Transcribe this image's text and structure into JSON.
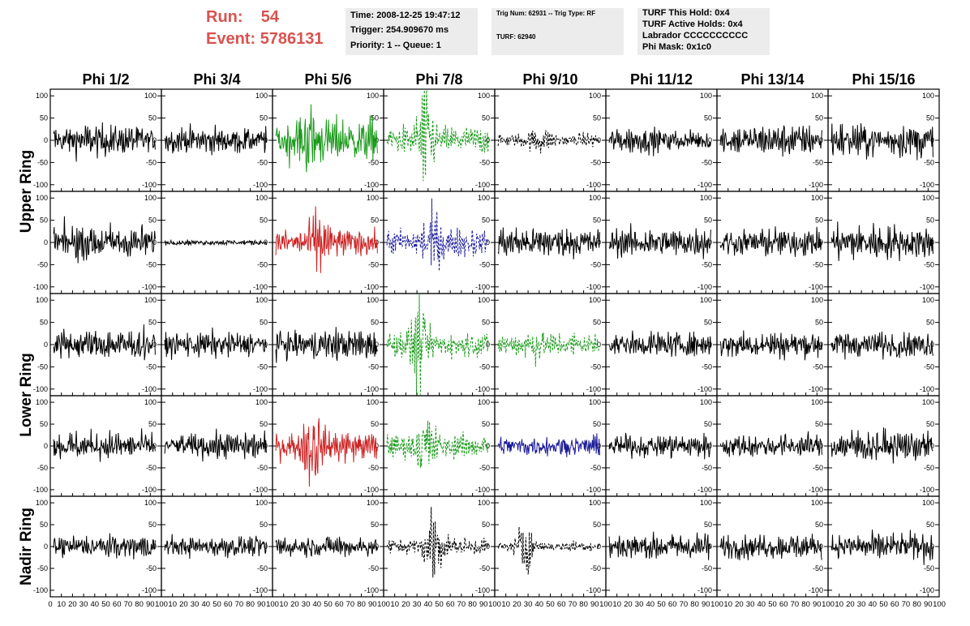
{
  "header": {
    "run_label": "Run:",
    "run_value": "54",
    "event_label": "Event:",
    "event_value": "5786131",
    "time_line": "Time: 2008-12-25 19:47:12",
    "trigger_line": "Trigger: 254.909670 ms",
    "priority_line": "Priority: 1 -- Queue: 1",
    "trig_line": "Trig Num: 62931 -- Trig Type: RF",
    "turf_line": "TURF: 62940",
    "turf_hold_line": "TURF This Hold: 0x4",
    "turf_active_line": "TURF Active Holds: 0x4",
    "labrador_line": "Labrador CCCCCCCCCC",
    "phi_mask_line": "Phi Mask: 0x1c0"
  },
  "colors": {
    "header_red": "#d9534f",
    "info_bg": "#ececec",
    "black": "#000000",
    "green": "#1a9a1a",
    "red": "#cc2222",
    "blue": "#1a1a99"
  },
  "chart_data": {
    "type": "line",
    "columns": [
      "Phi 1/2",
      "Phi 3/4",
      "Phi 5/6",
      "Phi 7/8",
      "Phi 9/10",
      "Phi 11/12",
      "Phi 13/14",
      "Phi 15/16"
    ],
    "rows": [
      "Upper Ring",
      "Lower Ring",
      "Nadir Ring"
    ],
    "ylim": [
      -115,
      115
    ],
    "xlim": [
      0,
      100
    ],
    "y_ticks": [
      "100",
      "50",
      "0",
      "-50",
      "-100"
    ],
    "x_ticks_first": [
      "0",
      "10",
      "20",
      "30",
      "40",
      "50",
      "60",
      "70",
      "80",
      "90",
      "100"
    ],
    "x_ticks_other": [
      "10",
      "20",
      "30",
      "40",
      "50",
      "60",
      "70",
      "80",
      "90",
      "100"
    ],
    "panels": [
      [
        {
          "color": "black",
          "style": "solid",
          "amp": 18,
          "burst": 0
        },
        {
          "color": "black",
          "style": "solid",
          "amp": 15,
          "burst": 0
        },
        {
          "color": "green",
          "style": "solid",
          "amp": 24,
          "burst": 25
        },
        {
          "color": "green",
          "style": "dashed",
          "amp": 16,
          "burst": 60
        },
        {
          "color": "black",
          "style": "dashed",
          "amp": 8,
          "burst": 10
        },
        {
          "color": "black",
          "style": "solid",
          "amp": 14,
          "burst": 0
        },
        {
          "color": "black",
          "style": "solid",
          "amp": 18,
          "burst": 0
        },
        {
          "color": "black",
          "style": "solid",
          "amp": 20,
          "burst": 0
        }
      ],
      [
        {
          "color": "black",
          "style": "solid",
          "amp": 20,
          "burst": 0
        },
        {
          "color": "black",
          "style": "solid",
          "amp": 3,
          "burst": 0
        },
        {
          "color": "red",
          "style": "solid",
          "amp": 16,
          "burst": 30
        },
        {
          "color": "blue",
          "style": "dashed",
          "amp": 16,
          "burst": 30
        },
        {
          "color": "black",
          "style": "solid",
          "amp": 18,
          "burst": 0
        },
        {
          "color": "black",
          "style": "solid",
          "amp": 16,
          "burst": 0
        },
        {
          "color": "black",
          "style": "solid",
          "amp": 16,
          "burst": 0
        },
        {
          "color": "black",
          "style": "solid",
          "amp": 20,
          "burst": 0
        }
      ],
      [
        {
          "color": "black",
          "style": "solid",
          "amp": 18,
          "burst": 0
        },
        {
          "color": "black",
          "style": "solid",
          "amp": 15,
          "burst": 0
        },
        {
          "color": "black",
          "style": "solid",
          "amp": 18,
          "burst": 0
        },
        {
          "color": "green",
          "style": "dashed",
          "amp": 14,
          "burst": 45
        },
        {
          "color": "green",
          "style": "dashed",
          "amp": 14,
          "burst": 10
        },
        {
          "color": "black",
          "style": "solid",
          "amp": 14,
          "burst": 0
        },
        {
          "color": "black",
          "style": "solid",
          "amp": 16,
          "burst": 0
        },
        {
          "color": "black",
          "style": "solid",
          "amp": 16,
          "burst": 0
        }
      ],
      [
        {
          "color": "black",
          "style": "solid",
          "amp": 16,
          "burst": 0
        },
        {
          "color": "black",
          "style": "solid",
          "amp": 15,
          "burst": 0
        },
        {
          "color": "red",
          "style": "solid",
          "amp": 18,
          "burst": 45
        },
        {
          "color": "green",
          "style": "dashed",
          "amp": 14,
          "burst": 35
        },
        {
          "color": "blue",
          "style": "solid",
          "amp": 12,
          "burst": 0
        },
        {
          "color": "black",
          "style": "solid",
          "amp": 14,
          "burst": 0
        },
        {
          "color": "black",
          "style": "solid",
          "amp": 14,
          "burst": 0
        },
        {
          "color": "black",
          "style": "solid",
          "amp": 18,
          "burst": 0
        }
      ],
      [
        {
          "color": "black",
          "style": "solid",
          "amp": 14,
          "burst": 0
        },
        {
          "color": "black",
          "style": "solid",
          "amp": 12,
          "burst": 0
        },
        {
          "color": "black",
          "style": "solid",
          "amp": 12,
          "burst": 0
        },
        {
          "color": "black",
          "style": "dashed",
          "amp": 10,
          "burst": 45
        },
        {
          "color": "black",
          "style": "dashed",
          "amp": 6,
          "burst": 30
        },
        {
          "color": "black",
          "style": "solid",
          "amp": 16,
          "burst": 0
        },
        {
          "color": "black",
          "style": "solid",
          "amp": 14,
          "burst": 0
        },
        {
          "color": "black",
          "style": "solid",
          "amp": 16,
          "burst": 0
        }
      ]
    ]
  }
}
